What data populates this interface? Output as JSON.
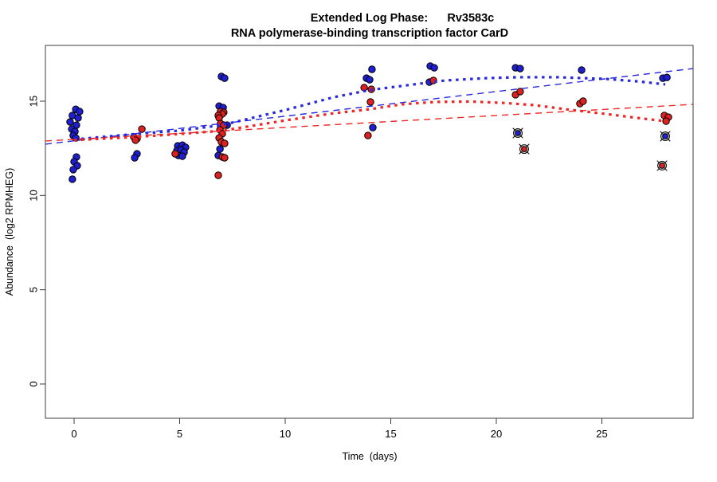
{
  "title": {
    "line1": "Extended Log Phase:      Rv3583c",
    "line2": "RNA polymerase-binding transcription factor CarD"
  },
  "axes": {
    "x": {
      "label": "Time  (days)",
      "ticks": [
        0,
        5,
        10,
        15,
        20,
        25
      ],
      "range_days": [
        -1.4,
        29.3
      ]
    },
    "y": {
      "label": "Abundance  (log2 RPMHEG)",
      "ticks": [
        0,
        5,
        10,
        15
      ],
      "range": [
        -1.8,
        18.0
      ]
    }
  },
  "colors": {
    "blue_point": "#1f1fd0",
    "red_point": "#dd2020",
    "blue_line": "#2828dd",
    "red_line": "#ee2626",
    "point_outline": "#000000",
    "box": "#3c3c3c",
    "outlier_ring": "#111111"
  },
  "chart_data": {
    "type": "scatter",
    "title": "Extended Log Phase:      Rv3583c",
    "subtitle": "RNA polymerase-binding transcription factor CarD",
    "xlabel": "Time  (days)",
    "ylabel": "Abundance  (log2 RPMHEG)",
    "xlim": [
      -1.4,
      29.3
    ],
    "ylim": [
      -1.8,
      18.0
    ],
    "grid": false,
    "legend": "none",
    "series": [
      {
        "name": "blue-condition",
        "marker": "filled-circle",
        "points": [
          [
            0.08,
            14.57
          ],
          [
            0.26,
            14.45
          ],
          [
            -0.08,
            14.24
          ],
          [
            0.19,
            14.11
          ],
          [
            -0.19,
            13.9
          ],
          [
            0.11,
            13.73
          ],
          [
            -0.11,
            13.52
          ],
          [
            0.04,
            13.39
          ],
          [
            -0.04,
            13.18
          ],
          [
            0.08,
            13.05
          ],
          [
            0.11,
            12.04
          ],
          [
            0.0,
            11.79
          ],
          [
            0.15,
            11.58
          ],
          [
            -0.04,
            11.37
          ],
          [
            -0.08,
            10.86
          ],
          [
            2.98,
            12.21
          ],
          [
            2.87,
            12.0
          ],
          [
            4.91,
            12.63
          ],
          [
            5.13,
            12.67
          ],
          [
            5.28,
            12.55
          ],
          [
            4.87,
            12.38
          ],
          [
            5.06,
            12.42
          ],
          [
            5.21,
            12.29
          ],
          [
            4.94,
            12.12
          ],
          [
            5.13,
            12.08
          ],
          [
            6.98,
            16.31
          ],
          [
            7.13,
            16.22
          ],
          [
            6.87,
            14.74
          ],
          [
            7.06,
            14.66
          ],
          [
            7.25,
            13.73
          ],
          [
            6.91,
            12.46
          ],
          [
            6.83,
            12.12
          ],
          [
            14.11,
            16.69
          ],
          [
            13.85,
            16.22
          ],
          [
            14.0,
            16.14
          ],
          [
            14.15,
            13.6
          ],
          [
            16.87,
            16.86
          ],
          [
            17.06,
            16.77
          ],
          [
            16.83,
            16.01
          ],
          [
            20.91,
            16.77
          ],
          [
            21.13,
            16.73
          ],
          [
            24.04,
            16.65
          ],
          [
            27.89,
            16.22
          ],
          [
            28.08,
            16.26
          ]
        ]
      },
      {
        "name": "red-condition",
        "marker": "filled-circle",
        "points": [
          [
            3.21,
            13.52
          ],
          [
            2.83,
            13.1
          ],
          [
            2.98,
            13.01
          ],
          [
            2.91,
            12.93
          ],
          [
            4.79,
            12.21
          ],
          [
            6.94,
            14.45
          ],
          [
            7.09,
            14.41
          ],
          [
            7.02,
            14.32
          ],
          [
            6.83,
            14.24
          ],
          [
            6.87,
            14.11
          ],
          [
            6.94,
            13.81
          ],
          [
            7.09,
            13.73
          ],
          [
            6.91,
            13.48
          ],
          [
            7.02,
            13.27
          ],
          [
            6.87,
            13.05
          ],
          [
            6.98,
            12.84
          ],
          [
            7.13,
            12.76
          ],
          [
            7.02,
            12.04
          ],
          [
            7.13,
            12.0
          ],
          [
            6.83,
            11.07
          ],
          [
            13.74,
            15.72
          ],
          [
            14.08,
            15.63
          ],
          [
            14.04,
            14.96
          ],
          [
            13.92,
            13.18
          ],
          [
            17.02,
            16.1
          ],
          [
            20.91,
            15.34
          ],
          [
            21.13,
            15.51
          ],
          [
            23.96,
            14.87
          ],
          [
            24.11,
            15.0
          ],
          [
            27.96,
            14.24
          ],
          [
            28.15,
            14.15
          ],
          [
            28.04,
            13.94
          ]
        ]
      },
      {
        "name": "blue-outliers-circled",
        "marker": "circled-x",
        "points": [
          [
            21.02,
            13.31
          ],
          [
            28.0,
            13.14
          ]
        ]
      },
      {
        "name": "red-outliers-circled",
        "marker": "circled-x",
        "points": [
          [
            21.32,
            12.46
          ],
          [
            27.85,
            11.58
          ]
        ]
      }
    ],
    "trend_lines": [
      {
        "name": "blue-linear-fit",
        "style": "longdash",
        "color_key": "blue_line",
        "points": [
          [
            -1.36,
            12.72
          ],
          [
            29.32,
            16.73
          ]
        ]
      },
      {
        "name": "red-linear-fit",
        "style": "longdash",
        "color_key": "red_line",
        "points": [
          [
            -1.36,
            12.89
          ],
          [
            29.32,
            14.83
          ]
        ]
      },
      {
        "name": "blue-smooth-fit",
        "style": "dotted-bold",
        "color_key": "blue_line",
        "points": [
          [
            0,
            12.97
          ],
          [
            2.9,
            13.26
          ],
          [
            5,
            13.44
          ],
          [
            7,
            13.73
          ],
          [
            10,
            14.53
          ],
          [
            12.3,
            15.21
          ],
          [
            14,
            15.59
          ],
          [
            16.1,
            15.89
          ],
          [
            17.6,
            16.1
          ],
          [
            19.5,
            16.22
          ],
          [
            21,
            16.27
          ],
          [
            22.9,
            16.27
          ],
          [
            25.2,
            16.18
          ],
          [
            26.7,
            16.05
          ],
          [
            28,
            15.89
          ]
        ]
      },
      {
        "name": "red-smooth-fit",
        "style": "dotted-bold",
        "color_key": "red_line",
        "points": [
          [
            0,
            12.93
          ],
          [
            2.9,
            13.1
          ],
          [
            5,
            13.26
          ],
          [
            7,
            13.43
          ],
          [
            10,
            13.98
          ],
          [
            12.3,
            14.36
          ],
          [
            14,
            14.57
          ],
          [
            15.5,
            14.83
          ],
          [
            17.1,
            14.96
          ],
          [
            18.8,
            14.98
          ],
          [
            20.3,
            14.91
          ],
          [
            21.8,
            14.79
          ],
          [
            23.3,
            14.57
          ],
          [
            25.2,
            14.32
          ],
          [
            26.7,
            14.11
          ],
          [
            28,
            13.94
          ]
        ]
      }
    ]
  }
}
